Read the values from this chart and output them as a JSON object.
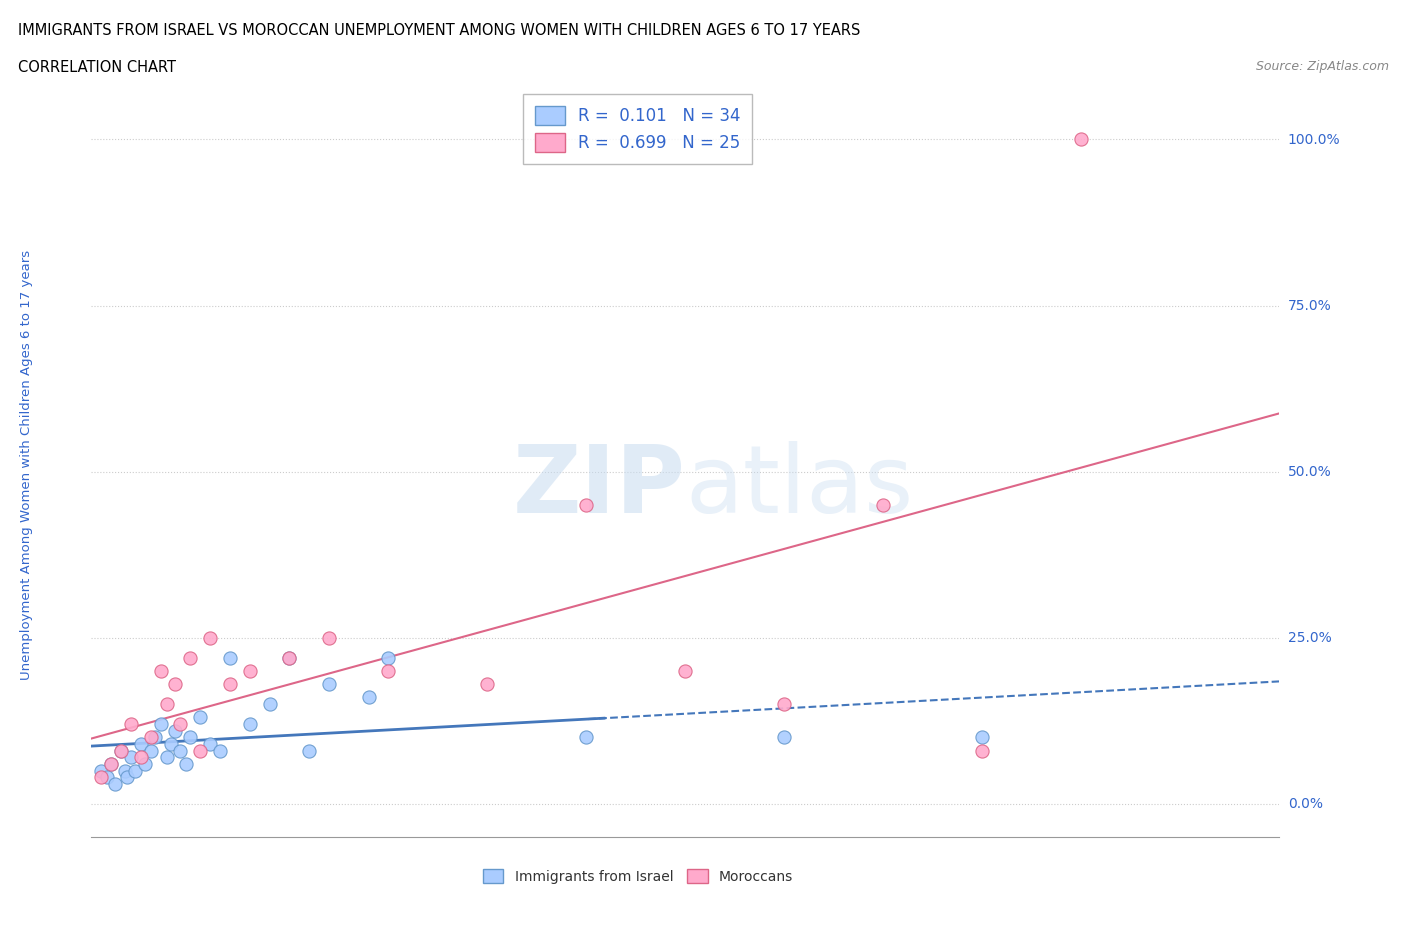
{
  "title_line1": "IMMIGRANTS FROM ISRAEL VS MOROCCAN UNEMPLOYMENT AMONG WOMEN WITH CHILDREN AGES 6 TO 17 YEARS",
  "title_line2": "CORRELATION CHART",
  "source_text": "Source: ZipAtlas.com",
  "ylabel_label": "Unemployment Among Women with Children Ages 6 to 17 years",
  "xmin": 0.0,
  "xmax": 6.0,
  "ymin": -5.0,
  "ymax": 107.0,
  "watermark": "ZIPatlas",
  "series": [
    {
      "name": "Immigrants from Israel",
      "color": "#aaccff",
      "edge_color": "#6699cc",
      "R": 0.101,
      "N": 34,
      "line_color": "#4477bb",
      "points_x": [
        0.05,
        0.08,
        0.1,
        0.12,
        0.15,
        0.17,
        0.18,
        0.2,
        0.22,
        0.25,
        0.27,
        0.3,
        0.32,
        0.35,
        0.38,
        0.4,
        0.42,
        0.45,
        0.48,
        0.5,
        0.55,
        0.6,
        0.65,
        0.7,
        0.8,
        0.9,
        1.0,
        1.1,
        1.2,
        1.4,
        1.5,
        2.5,
        3.5,
        4.5
      ],
      "points_y": [
        5.0,
        4.0,
        6.0,
        3.0,
        8.0,
        5.0,
        4.0,
        7.0,
        5.0,
        9.0,
        6.0,
        8.0,
        10.0,
        12.0,
        7.0,
        9.0,
        11.0,
        8.0,
        6.0,
        10.0,
        13.0,
        9.0,
        8.0,
        22.0,
        12.0,
        15.0,
        22.0,
        8.0,
        18.0,
        16.0,
        22.0,
        10.0,
        10.0,
        10.0
      ]
    },
    {
      "name": "Moroccans",
      "color": "#ffaacc",
      "edge_color": "#dd6688",
      "R": 0.699,
      "N": 25,
      "line_color": "#dd6688",
      "points_x": [
        0.05,
        0.1,
        0.15,
        0.2,
        0.25,
        0.3,
        0.35,
        0.38,
        0.42,
        0.45,
        0.5,
        0.55,
        0.6,
        0.7,
        0.8,
        1.0,
        1.2,
        1.5,
        2.0,
        2.5,
        3.0,
        3.5,
        4.0,
        4.5,
        5.0
      ],
      "points_y": [
        4.0,
        6.0,
        8.0,
        12.0,
        7.0,
        10.0,
        20.0,
        15.0,
        18.0,
        12.0,
        22.0,
        8.0,
        25.0,
        18.0,
        20.0,
        22.0,
        25.0,
        20.0,
        18.0,
        45.0,
        20.0,
        15.0,
        45.0,
        8.0,
        100.0
      ]
    }
  ],
  "legend_color": "#3366cc",
  "title_color": "#000000",
  "axis_label_color": "#3366cc",
  "background_color": "#ffffff",
  "grid_color": "#cccccc"
}
